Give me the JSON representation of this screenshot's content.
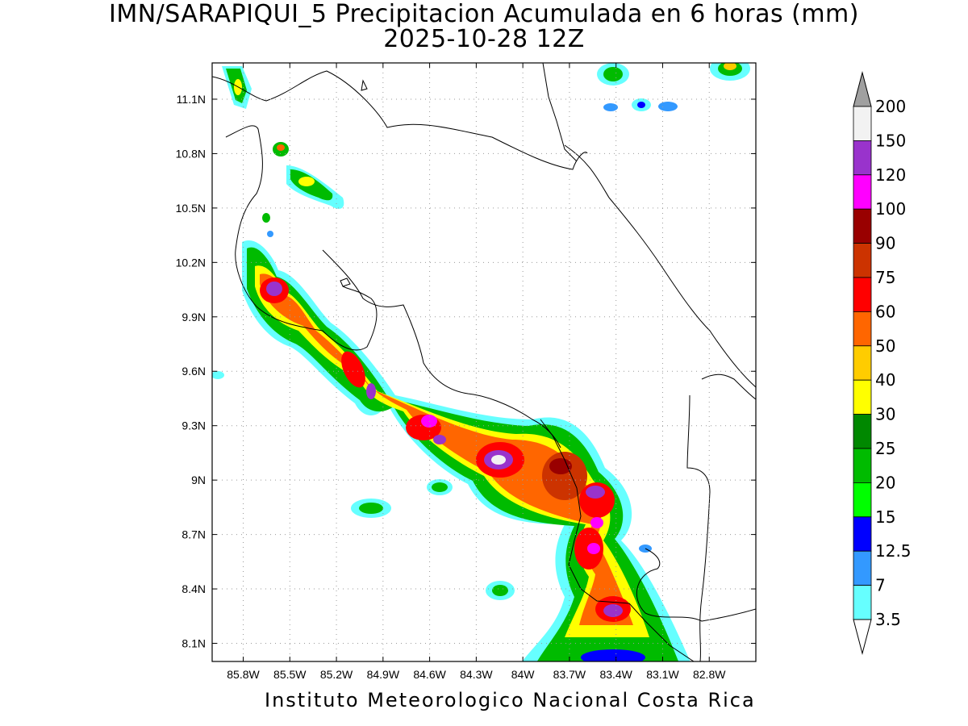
{
  "title": {
    "line1": "IMN/SARAPIQUI_5 Precipitacion Acumulada en 6 horas (mm)",
    "line2": "2025-10-28 12Z"
  },
  "footer": "Instituto Meteorologico Nacional Costa Rica",
  "map": {
    "lon_range": [
      -86.0,
      -82.5
    ],
    "lat_range": [
      8.0,
      11.3
    ],
    "x_ticks": [
      "85.8W",
      "85.5W",
      "85.2W",
      "84.9W",
      "84.6W",
      "84.3W",
      "84W",
      "83.7W",
      "83.4W",
      "83.1W",
      "82.8W"
    ],
    "y_ticks": [
      "11.1N",
      "10.8N",
      "10.5N",
      "10.2N",
      "9.9N",
      "9.6N",
      "9.3N",
      "9N",
      "8.7N",
      "8.4N",
      "8.1N"
    ],
    "grid": "dotted"
  },
  "colorbar": {
    "labels": [
      "200",
      "150",
      "120",
      "100",
      "90",
      "75",
      "60",
      "50",
      "40",
      "30",
      "25",
      "20",
      "15",
      "12.5",
      "7",
      "3.5"
    ],
    "colors": [
      "#f2f2f2",
      "#9933cc",
      "#ff00ff",
      "#990000",
      "#cc3300",
      "#ff0000",
      "#ff6600",
      "#ffcc00",
      "#ffff00",
      "#008800",
      "#00bb00",
      "#00ff00",
      "#0000ff",
      "#3399ff",
      "#66ffff"
    ],
    "over_color": "#a0a0a0",
    "under_color": "#ffffff"
  }
}
